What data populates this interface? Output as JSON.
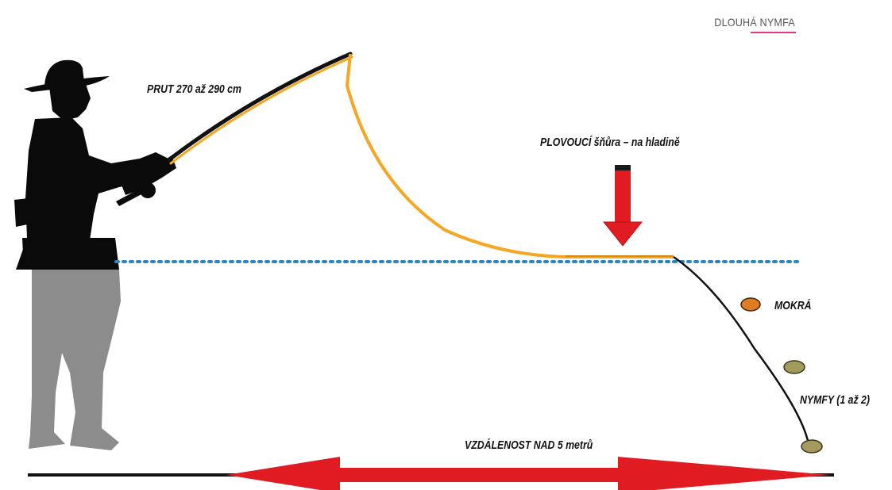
{
  "header": {
    "title": "DLOUHÁ NYMFA"
  },
  "labels": {
    "rod": "PRUT 270 až 290 cm",
    "floating_line": "PLOVOUCÍ šňůra – na hladině",
    "wet_fly": "MOKRÁ",
    "nymphs": "NYMFY (1 až 2)",
    "distance": "VZDÁLENOST NAD 5 metrů"
  },
  "colors": {
    "accent_underline": "#e8368f",
    "fly_line": "#f5a623",
    "arrow_red": "#e01b22",
    "arrow_dark": "#1a1a1a",
    "water_dots": "#2e86c1",
    "angler_above": "#0a0a0a",
    "angler_below": "#8c8c8c",
    "wet_fly": "#e07b22",
    "nymph": "#a39a5e"
  },
  "icons": {
    "angler": "angler-silhouette-icon",
    "rod": "fishing-rod",
    "down_arrow": "down-arrow-icon",
    "distance_arrow": "double-headed-arrow-icon"
  }
}
